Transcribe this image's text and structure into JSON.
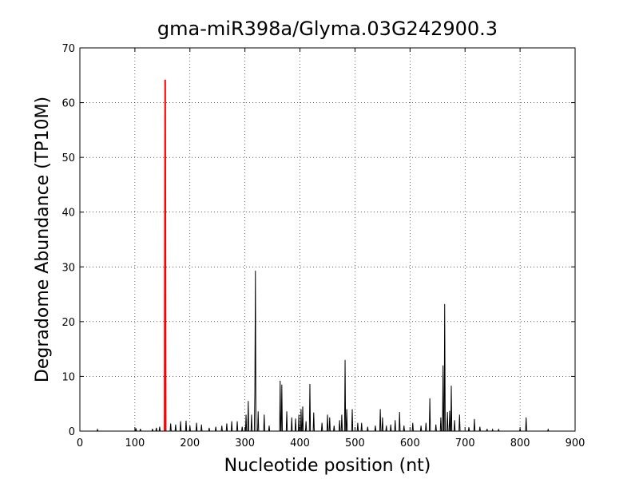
{
  "chart_data": {
    "type": "line",
    "title": "gma-miR398a/Glyma.03G242900.3",
    "x_label": "Nucleotide position (nt)",
    "y_label": "Degradome Abundance (TP10M)",
    "xlim": [
      0,
      900
    ],
    "ylim": [
      0,
      70
    ],
    "xticks": [
      0,
      100,
      200,
      300,
      400,
      500,
      600,
      700,
      800,
      900
    ],
    "yticks": [
      0,
      10,
      20,
      30,
      40,
      50,
      60,
      70
    ],
    "grid": true,
    "series": [
      {
        "color": "#000000",
        "x": [
          0,
          31,
          32,
          33,
          101,
          102,
          103,
          109,
          110,
          111,
          131,
          132,
          133,
          138,
          139,
          140,
          144,
          145,
          146,
          164,
          165,
          166,
          173,
          174,
          175,
          182,
          183,
          184,
          192,
          193,
          194,
          199,
          200,
          201,
          211,
          212,
          213,
          220,
          221,
          222,
          234,
          235,
          236,
          246,
          247,
          248,
          257,
          258,
          259,
          266,
          267,
          268,
          275,
          276,
          277,
          285,
          286,
          287,
          294,
          295,
          296,
          301,
          302,
          303,
          305,
          306,
          307,
          311,
          312,
          313,
          317,
          318,
          319,
          320,
          323,
          324,
          325,
          334,
          335,
          336,
          343,
          344,
          345,
          363,
          364,
          365,
          366,
          367,
          368,
          375,
          376,
          377,
          384,
          385,
          386,
          391,
          392,
          393,
          397,
          398,
          399,
          401,
          402,
          403,
          404,
          405,
          406,
          410,
          411,
          412,
          417,
          418,
          419,
          424,
          425,
          426,
          439,
          440,
          441,
          449,
          450,
          451,
          453,
          454,
          455,
          461,
          462,
          463,
          471,
          472,
          473,
          475,
          476,
          477,
          481,
          482,
          483,
          484,
          485,
          486,
          494,
          495,
          496,
          504,
          505,
          506,
          511,
          512,
          513,
          522,
          523,
          524,
          536,
          537,
          538,
          545,
          546,
          547,
          549,
          550,
          551,
          556,
          557,
          558,
          564,
          565,
          566,
          572,
          573,
          574,
          580,
          581,
          582,
          588,
          589,
          590,
          604,
          605,
          606,
          619,
          620,
          621,
          628,
          629,
          630,
          635,
          636,
          637,
          646,
          647,
          648,
          655,
          656,
          657,
          659,
          660,
          661,
          662,
          663,
          664,
          667,
          668,
          669,
          671,
          672,
          673,
          674,
          675,
          676,
          680,
          681,
          682,
          689,
          690,
          691,
          706,
          707,
          708,
          716,
          717,
          718,
          726,
          727,
          728,
          739,
          740,
          741,
          749,
          750,
          751,
          760,
          761,
          762,
          799,
          800,
          801,
          810,
          811,
          812,
          850,
          851,
          852,
          900
        ],
        "values": [
          0,
          0,
          0.3,
          0,
          0,
          0.5,
          0,
          0,
          0.4,
          0,
          0,
          0.4,
          0,
          0,
          0.6,
          0,
          0,
          0.8,
          0,
          0,
          1.4,
          0,
          0,
          1.2,
          0,
          0,
          1.8,
          0,
          0,
          1.9,
          0,
          0,
          1.0,
          0,
          0,
          1.5,
          0,
          0,
          1.2,
          0,
          0,
          0.6,
          0,
          0,
          0.8,
          0,
          0,
          1.0,
          0,
          0,
          1.4,
          0,
          0,
          1.8,
          0,
          0,
          1.8,
          0,
          0,
          0.8,
          0,
          0,
          3.0,
          0,
          0,
          5.5,
          0,
          0,
          3.0,
          0,
          0,
          7,
          29.3,
          0,
          0,
          3.6,
          0,
          0,
          3,
          0,
          0,
          1,
          0,
          0,
          9.2,
          0,
          0,
          8.5,
          0,
          0,
          3.6,
          0,
          0,
          2.5,
          0,
          0,
          2.3,
          0,
          0,
          3,
          0,
          0,
          4,
          0,
          0,
          4.5,
          0,
          0,
          1.8,
          0,
          0,
          8.6,
          0,
          0,
          3.4,
          0,
          0,
          1.5,
          0,
          0,
          3,
          0,
          0,
          2.5,
          0,
          0,
          1,
          0,
          0,
          2,
          0,
          0,
          3,
          0,
          0,
          13,
          0,
          0,
          4,
          0,
          0,
          4,
          0,
          0,
          1.5,
          0,
          0,
          1.5,
          0,
          0,
          0.8,
          0,
          0,
          1,
          0,
          0,
          4,
          0,
          0,
          2.5,
          0,
          0,
          1,
          0,
          0,
          1.2,
          0,
          0,
          2,
          0,
          0,
          3.5,
          0,
          0,
          1,
          0,
          0,
          1.5,
          0,
          0,
          1,
          0,
          0,
          1.5,
          0,
          0,
          6,
          0,
          0,
          1.2,
          0,
          0,
          2.5,
          0,
          0,
          12,
          0,
          0,
          23.2,
          0,
          0,
          3.5,
          0,
          0,
          3.7,
          0,
          0,
          8.3,
          0,
          0,
          2,
          0,
          0,
          3,
          0,
          0,
          0.7,
          0,
          0,
          2.2,
          0,
          0,
          0.8,
          0,
          0,
          0.4,
          0,
          0,
          0.3,
          0,
          0,
          0.3,
          0,
          0,
          0.4,
          0,
          0,
          2.5,
          0,
          0,
          0.3,
          0,
          0
        ]
      },
      {
        "color": "#ff0000",
        "x": [
          154,
          155,
          156
        ],
        "values": [
          0,
          64.2,
          0
        ]
      }
    ]
  }
}
